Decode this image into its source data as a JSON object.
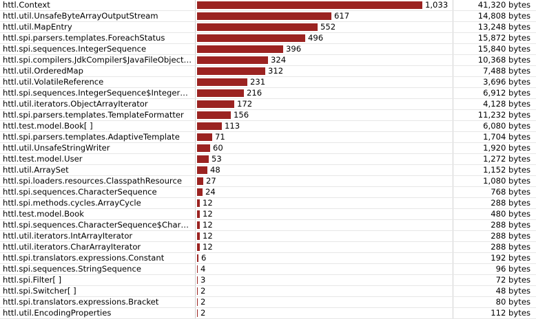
{
  "table": {
    "rows": [
      {
        "name": "httl.Context",
        "count": 1033,
        "count_label": "1,033",
        "bytes": "41,320 bytes"
      },
      {
        "name": "httl.util.UnsafeByteArrayOutputStream",
        "count": 617,
        "count_label": "617",
        "bytes": "14,808 bytes"
      },
      {
        "name": "httl.util.MapEntry",
        "count": 552,
        "count_label": "552",
        "bytes": "13,248 bytes"
      },
      {
        "name": "httl.spi.parsers.templates.ForeachStatus",
        "count": 496,
        "count_label": "496",
        "bytes": "15,872 bytes"
      },
      {
        "name": "httl.spi.sequences.IntegerSequence",
        "count": 396,
        "count_label": "396",
        "bytes": "15,840 bytes"
      },
      {
        "name": "httl.spi.compilers.JdkCompiler$JavaFileObjectI…",
        "count": 324,
        "count_label": "324",
        "bytes": "10,368 bytes"
      },
      {
        "name": "httl.util.OrderedMap",
        "count": 312,
        "count_label": "312",
        "bytes": "7,488 bytes"
      },
      {
        "name": "httl.util.VolatileReference",
        "count": 231,
        "count_label": "231",
        "bytes": "3,696 bytes"
      },
      {
        "name": "httl.spi.sequences.IntegerSequence$IntegerSe…",
        "count": 216,
        "count_label": "216",
        "bytes": "6,912 bytes"
      },
      {
        "name": "httl.util.iterators.ObjectArrayIterator",
        "count": 172,
        "count_label": "172",
        "bytes": "4,128 bytes"
      },
      {
        "name": "httl.spi.parsers.templates.TemplateFormatter",
        "count": 156,
        "count_label": "156",
        "bytes": "11,232 bytes"
      },
      {
        "name": "httl.test.model.Book[ ]",
        "count": 113,
        "count_label": "113",
        "bytes": "6,080 bytes"
      },
      {
        "name": "httl.spi.parsers.templates.AdaptiveTemplate",
        "count": 71,
        "count_label": "71",
        "bytes": "1,704 bytes"
      },
      {
        "name": "httl.util.UnsafeStringWriter",
        "count": 60,
        "count_label": "60",
        "bytes": "1,920 bytes"
      },
      {
        "name": "httl.test.model.User",
        "count": 53,
        "count_label": "53",
        "bytes": "1,272 bytes"
      },
      {
        "name": "httl.util.ArraySet",
        "count": 48,
        "count_label": "48",
        "bytes": "1,152 bytes"
      },
      {
        "name": "httl.spi.loaders.resources.ClasspathResource",
        "count": 27,
        "count_label": "27",
        "bytes": "1,080 bytes"
      },
      {
        "name": "httl.spi.sequences.CharacterSequence",
        "count": 24,
        "count_label": "24",
        "bytes": "768 bytes"
      },
      {
        "name": "httl.spi.methods.cycles.ArrayCycle",
        "count": 12,
        "count_label": "12",
        "bytes": "288 bytes"
      },
      {
        "name": "httl.test.model.Book",
        "count": 12,
        "count_label": "12",
        "bytes": "480 bytes"
      },
      {
        "name": "httl.spi.sequences.CharacterSequence$Charac…",
        "count": 12,
        "count_label": "12",
        "bytes": "288 bytes"
      },
      {
        "name": "httl.util.iterators.IntArrayIterator",
        "count": 12,
        "count_label": "12",
        "bytes": "288 bytes"
      },
      {
        "name": "httl.util.iterators.CharArrayIterator",
        "count": 12,
        "count_label": "12",
        "bytes": "288 bytes"
      },
      {
        "name": "httl.spi.translators.expressions.Constant",
        "count": 6,
        "count_label": "6",
        "bytes": "192 bytes"
      },
      {
        "name": "httl.spi.sequences.StringSequence",
        "count": 4,
        "count_label": "4",
        "bytes": "96 bytes"
      },
      {
        "name": "httl.spi.Filter[ ]",
        "count": 3,
        "count_label": "3",
        "bytes": "72 bytes"
      },
      {
        "name": "httl.spi.Switcher[ ]",
        "count": 2,
        "count_label": "2",
        "bytes": "48 bytes"
      },
      {
        "name": "httl.spi.translators.expressions.Bracket",
        "count": 2,
        "count_label": "2",
        "bytes": "80 bytes"
      },
      {
        "name": "httl.util.EncodingProperties",
        "count": 2,
        "count_label": "2",
        "bytes": "112 bytes"
      }
    ]
  },
  "colors": {
    "bar": "#9b2321",
    "grid": "#e6e6e6"
  }
}
